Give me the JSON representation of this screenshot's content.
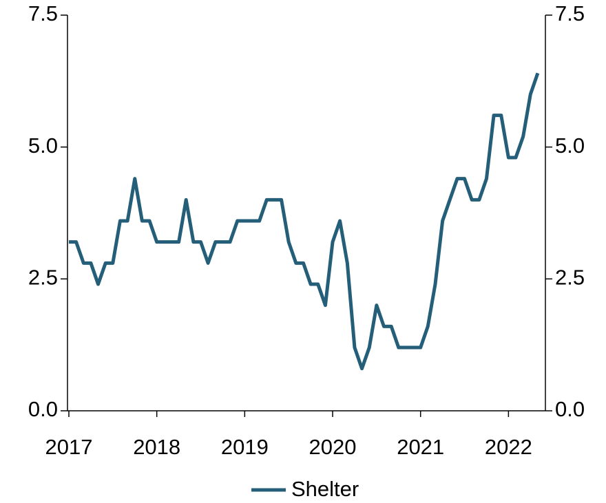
{
  "chart_data": {
    "type": "line",
    "x": [
      2017.0,
      2017.083,
      2017.167,
      2017.25,
      2017.333,
      2017.417,
      2017.5,
      2017.583,
      2017.667,
      2017.75,
      2017.833,
      2017.917,
      2018.0,
      2018.083,
      2018.167,
      2018.25,
      2018.333,
      2018.417,
      2018.5,
      2018.583,
      2018.667,
      2018.75,
      2018.833,
      2018.917,
      2019.0,
      2019.083,
      2019.167,
      2019.25,
      2019.333,
      2019.417,
      2019.5,
      2019.583,
      2019.667,
      2019.75,
      2019.833,
      2019.917,
      2020.0,
      2020.083,
      2020.167,
      2020.25,
      2020.333,
      2020.417,
      2020.5,
      2020.583,
      2020.667,
      2020.75,
      2020.833,
      2020.917,
      2021.0,
      2021.083,
      2021.167,
      2021.25,
      2021.333,
      2021.417,
      2021.5,
      2021.583,
      2021.667,
      2021.75,
      2021.833,
      2021.917,
      2022.0,
      2022.083,
      2022.167,
      2022.25,
      2022.333
    ],
    "series": [
      {
        "name": "Shelter",
        "color": "#255e79",
        "values": [
          3.2,
          3.2,
          2.8,
          2.8,
          2.4,
          2.8,
          2.8,
          3.6,
          3.6,
          4.4,
          3.6,
          3.6,
          3.2,
          3.2,
          3.2,
          3.2,
          4.0,
          3.2,
          3.2,
          2.8,
          3.2,
          3.2,
          3.2,
          3.6,
          3.6,
          3.6,
          3.6,
          4.0,
          4.0,
          4.0,
          3.2,
          2.8,
          2.8,
          2.4,
          2.4,
          2.0,
          3.2,
          3.6,
          2.8,
          1.2,
          0.8,
          1.2,
          2.0,
          1.6,
          1.6,
          1.2,
          1.2,
          1.2,
          1.2,
          1.6,
          2.4,
          3.6,
          4.0,
          4.4,
          4.4,
          4.0,
          4.0,
          4.4,
          5.6,
          5.6,
          4.8,
          4.8,
          5.2,
          6.0,
          6.4
        ]
      }
    ],
    "xlim": [
      2017,
      2022.42
    ],
    "xticks": [
      2017,
      2018,
      2019,
      2020,
      2021,
      2022
    ],
    "ylim": [
      0,
      7.5
    ],
    "yticks": [
      {
        "value": 0,
        "label": "0.0"
      },
      2.5,
      {
        "value": 5,
        "label": "5.0"
      },
      7.5
    ],
    "y2lim": [
      0,
      7.5
    ],
    "y2ticks": [
      {
        "value": 0,
        "label": "0.0"
      },
      2.5,
      {
        "value": 5,
        "label": "5.0"
      },
      7.5
    ],
    "grid": false
  }
}
